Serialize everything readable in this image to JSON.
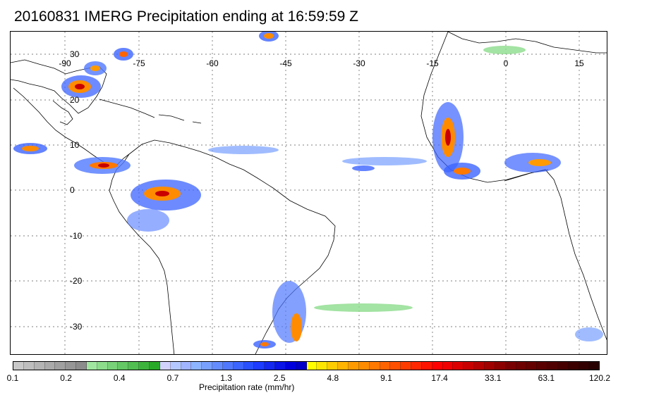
{
  "title": "20160831 IMERG Precipitation ending at 16:59:59 Z",
  "map": {
    "longitude_labels": [
      "-90",
      "-75",
      "-60",
      "-45",
      "-30",
      "-15",
      "0",
      "15"
    ],
    "latitude_labels": [
      "30",
      "20",
      "10",
      "0",
      "-10",
      "-20",
      "-30"
    ],
    "gridlines": "dotted"
  },
  "colorbar": {
    "title": "Precipitation rate (mm/hr)",
    "tick_labels": [
      "0.1",
      "0.2",
      "0.4",
      "0.7",
      "1.3",
      "2.5",
      "4.8",
      "9.1",
      "17.4",
      "33.1",
      "63.1",
      "120.2"
    ],
    "colors": [
      "#c8c8c8",
      "#bebebe",
      "#b4b4b4",
      "#aaaaaa",
      "#a0a0a0",
      "#969696",
      "#8c8c8c",
      "#a0e6a0",
      "#8cdc8c",
      "#78d278",
      "#64c864",
      "#50be50",
      "#3cb43c",
      "#28aa28",
      "#d2d2ff",
      "#b4c8ff",
      "#a0b4ff",
      "#8cb4ff",
      "#78a0ff",
      "#648cff",
      "#5078ff",
      "#3c64ff",
      "#2850ff",
      "#1e3cff",
      "#1428f0",
      "#0a14e6",
      "#0000dc",
      "#0000c8",
      "#ffff00",
      "#ffe600",
      "#ffcc00",
      "#ffb400",
      "#ff9b00",
      "#ff8c00",
      "#ff7800",
      "#ff6400",
      "#ff5000",
      "#ff3c00",
      "#ff2800",
      "#ff1400",
      "#ff0000",
      "#f00000",
      "#dc0000",
      "#c80000",
      "#b40000",
      "#a00000",
      "#8c0000",
      "#780000",
      "#6e0000",
      "#640000",
      "#5a0000",
      "#500000",
      "#460000",
      "#3c0000",
      "#320000",
      "#280000"
    ]
  }
}
